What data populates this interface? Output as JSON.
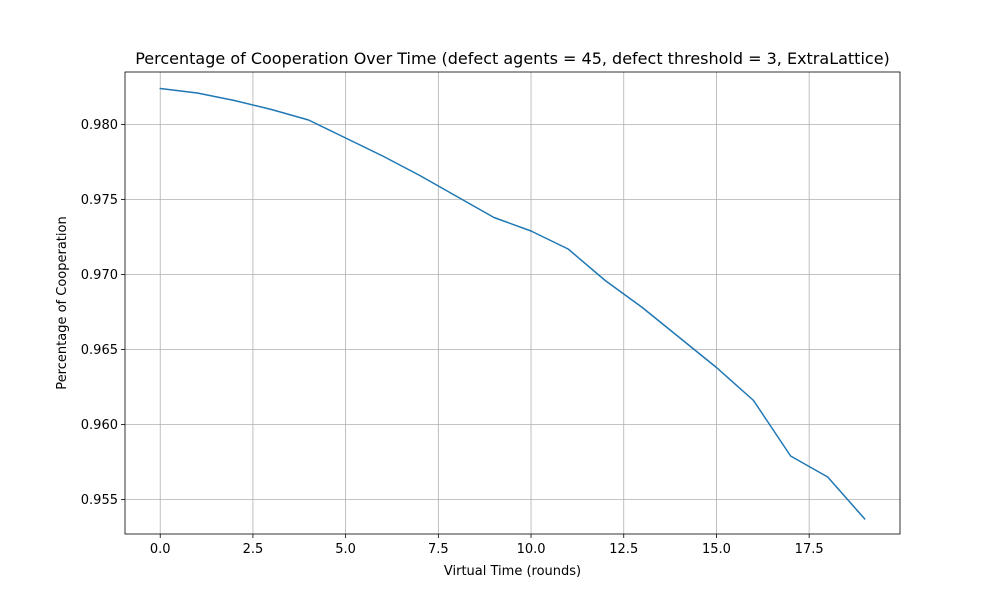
{
  "chart_data": {
    "type": "line",
    "title": "Percentage of Cooperation Over Time (defect agents = 45, defect threshold = 3, ExtraLattice)",
    "xlabel": "Virtual Time (rounds)",
    "ylabel": "Percentage of Cooperation",
    "x": [
      0,
      1,
      2,
      3,
      4,
      5,
      6,
      7,
      8,
      9,
      10,
      11,
      12,
      13,
      14,
      15,
      16,
      17,
      18,
      19
    ],
    "series": [
      {
        "values": [
          0.9824,
          0.9821,
          0.9816,
          0.981,
          0.9803,
          0.9791,
          0.9779,
          0.9766,
          0.9752,
          0.9738,
          0.9729,
          0.9717,
          0.9696,
          0.9678,
          0.9658,
          0.9638,
          0.9616,
          0.9579,
          0.9565,
          0.9537
        ],
        "color": "#1f77b4"
      }
    ],
    "xlim": [
      -0.95,
      19.95
    ],
    "ylim": [
      0.9527,
      0.9835
    ],
    "x_ticks": [
      0.0,
      2.5,
      5.0,
      7.5,
      10.0,
      12.5,
      15.0,
      17.5
    ],
    "x_tick_labels": [
      "0.0",
      "2.5",
      "5.0",
      "7.5",
      "10.0",
      "12.5",
      "15.0",
      "17.5"
    ],
    "y_ticks": [
      0.955,
      0.96,
      0.965,
      0.97,
      0.975,
      0.98
    ],
    "y_tick_labels": [
      "0.955",
      "0.960",
      "0.965",
      "0.970",
      "0.975",
      "0.980"
    ],
    "grid": true,
    "legend": "none"
  }
}
